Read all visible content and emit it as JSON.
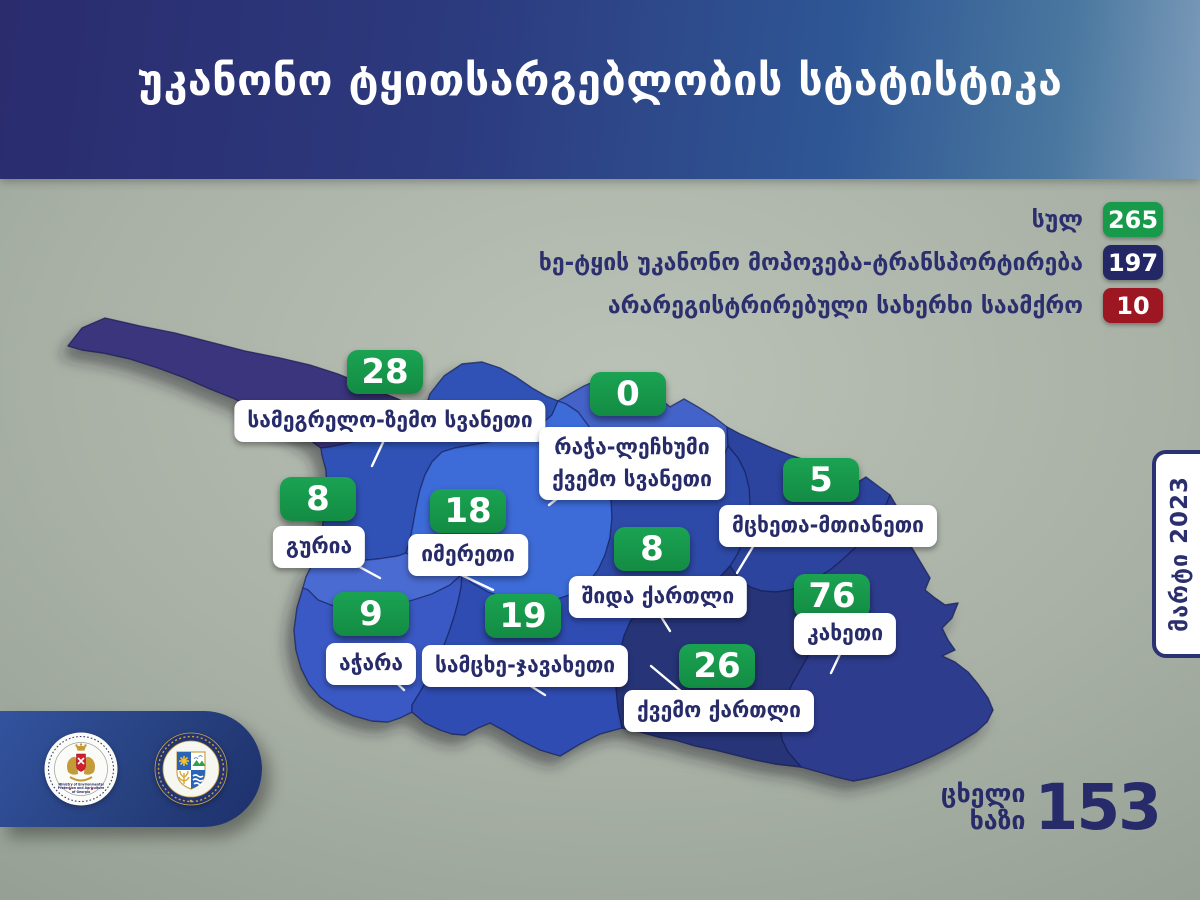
{
  "title": "უკანონო ტყითსარგებლობის სტატისტიკა",
  "legend": {
    "items": [
      {
        "label": "სულ",
        "value": "265",
        "color": "#189a4b"
      },
      {
        "label": "ხე-ტყის უკანონო მოპოვება-ტრანსპორტირება",
        "value": "197",
        "color": "#232766"
      },
      {
        "label": "არარეგისტრირებული სახერხი საამქრო",
        "value": "10",
        "color": "#9c1722"
      }
    ]
  },
  "map": {
    "regions": [
      {
        "key": "samegrelo",
        "name": "სამეგრელო-ზემო სვანეთი",
        "value": "28",
        "fill": "#3052b6"
      },
      {
        "key": "racha",
        "name": "რაჭა-ლეჩხუმი ქვემო სვანეთი",
        "name_lines": [
          "რაჭა-ლეჩხუმი",
          "ქვემო სვანეთი"
        ],
        "value": "0",
        "fill": "#4463c8"
      },
      {
        "key": "guria",
        "name": "გურია",
        "value": "8",
        "fill": "#4a6bd2"
      },
      {
        "key": "imereti",
        "name": "იმერეთი",
        "value": "18",
        "fill": "#3d6bd8"
      },
      {
        "key": "mtskheta",
        "name": "მცხეთა-მთიანეთი",
        "value": "5",
        "fill": "#2c449e"
      },
      {
        "key": "shida",
        "name": "შიდა ქართლი",
        "value": "8",
        "fill": "#2e4aa8"
      },
      {
        "key": "adjara",
        "name": "აჭარა",
        "value": "9",
        "fill": "#3a59c4"
      },
      {
        "key": "samtskhe",
        "name": "სამცხე-ჯავახეთი",
        "value": "19",
        "fill": "#2f4cb2"
      },
      {
        "key": "kakheti",
        "name": "კახეთი",
        "value": "76",
        "fill": "#2e3c8e"
      },
      {
        "key": "kvemo",
        "name": "ქვემო ქართლი",
        "value": "26",
        "fill": "#273478"
      }
    ],
    "unlabeled_regions": [
      {
        "key": "abkhazia",
        "fill": "#3a357d"
      }
    ],
    "base_fill": "#2e3f97"
  },
  "period_label": "მარტი 2023",
  "hotline": {
    "label": "ცხელი ხაზი",
    "label_lines": [
      "ცხელი",
      "ხაზი"
    ],
    "number": "153"
  },
  "logos": {
    "ministry_caption": "Ministry of Environmental Protection and Agriculture of Georgia"
  },
  "chart_data": {
    "type": "choropleth_map",
    "title": "უკანონო ტყითსარგებლობის სტატისტიკა",
    "period": "მარტი 2023",
    "totals": [
      {
        "label": "სულ",
        "value": 265
      },
      {
        "label": "ხე-ტყის უკანონო მოპოვება-ტრანსპორტირება",
        "value": 197
      },
      {
        "label": "არარეგისტრირებული სახერხი საამქრო",
        "value": 10
      }
    ],
    "regions": [
      {
        "name": "სამეგრელო-ზემო სვანეთი",
        "value": 28
      },
      {
        "name": "რაჭა-ლეჩხუმი ქვემო სვანეთი",
        "value": 0
      },
      {
        "name": "გურია",
        "value": 8
      },
      {
        "name": "იმერეთი",
        "value": 18
      },
      {
        "name": "მცხეთა-მთიანეთი",
        "value": 5
      },
      {
        "name": "შიდა ქართლი",
        "value": 8
      },
      {
        "name": "აჭარა",
        "value": 9
      },
      {
        "name": "სამცხე-ჯავახეთი",
        "value": 19
      },
      {
        "name": "კახეთი",
        "value": 76
      },
      {
        "name": "ქვემო ქართლი",
        "value": 26
      }
    ]
  }
}
